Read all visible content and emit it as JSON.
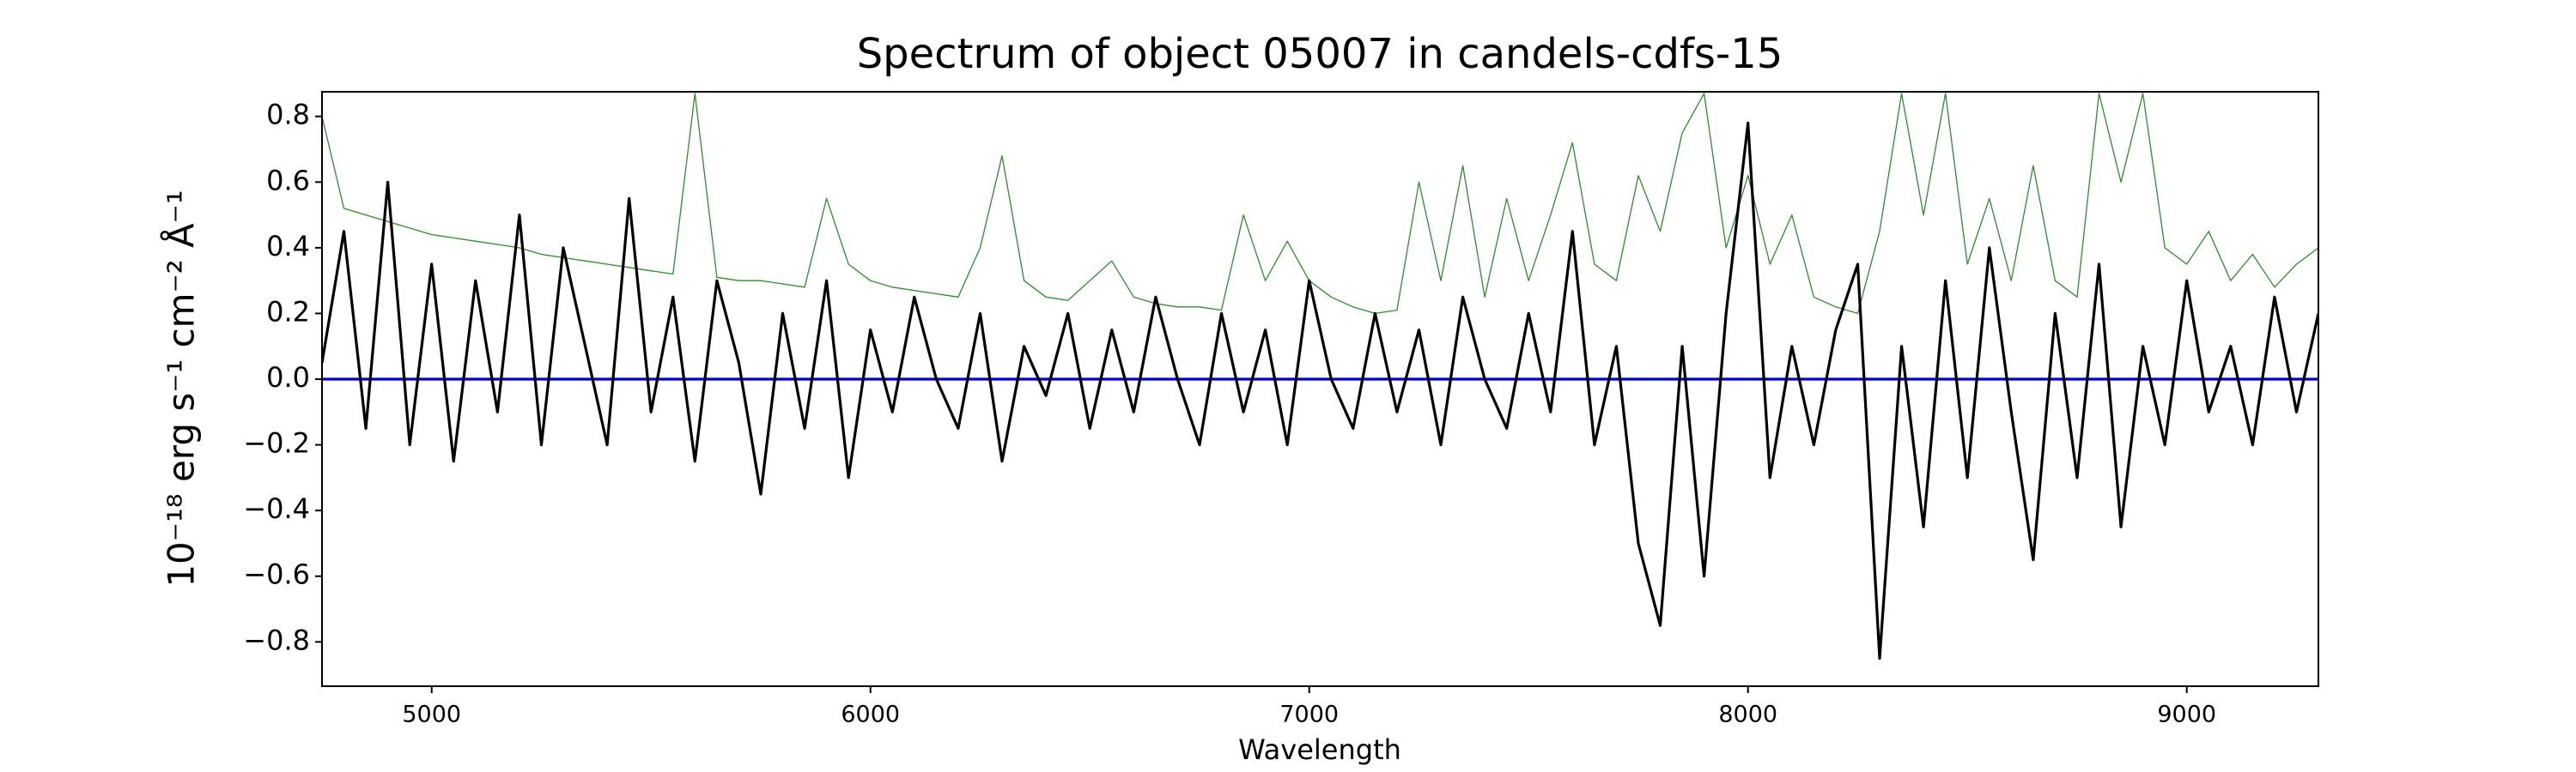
{
  "chart_data": {
    "type": "line",
    "title": "Spectrum of object 05007 in candels-cdfs-15",
    "xlabel": "Wavelength",
    "ylabel": "10⁻¹⁸ erg s⁻¹ cm⁻² Å⁻¹",
    "xlim": [
      4750,
      9300
    ],
    "ylim": [
      -0.935,
      0.875
    ],
    "xticks": [
      5000,
      6000,
      7000,
      8000,
      9000
    ],
    "yticks": [
      {
        "value": -0.8,
        "label": "−0.8"
      },
      {
        "value": -0.6,
        "label": "−0.6"
      },
      {
        "value": -0.4,
        "label": "−0.4"
      },
      {
        "value": -0.2,
        "label": "−0.2"
      },
      {
        "value": 0,
        "label": "0.0"
      },
      0.2,
      0.4,
      0.6,
      0.8
    ],
    "x": [
      4750,
      4800,
      4850,
      4900,
      4950,
      5000,
      5050,
      5100,
      5150,
      5200,
      5250,
      5300,
      5350,
      5400,
      5450,
      5500,
      5550,
      5600,
      5650,
      5700,
      5750,
      5800,
      5850,
      5900,
      5950,
      6000,
      6050,
      6100,
      6150,
      6200,
      6250,
      6300,
      6350,
      6400,
      6450,
      6500,
      6550,
      6600,
      6650,
      6700,
      6750,
      6800,
      6850,
      6900,
      6950,
      7000,
      7050,
      7100,
      7150,
      7200,
      7250,
      7300,
      7350,
      7400,
      7450,
      7500,
      7550,
      7600,
      7650,
      7700,
      7750,
      7800,
      7850,
      7900,
      7950,
      8000,
      8050,
      8100,
      8150,
      8200,
      8250,
      8300,
      8350,
      8400,
      8450,
      8500,
      8550,
      8600,
      8650,
      8700,
      8750,
      8800,
      8850,
      8900,
      8950,
      9000,
      9050,
      9100,
      9150,
      9200,
      9250,
      9300
    ],
    "series": [
      {
        "color": "#2e8b2e",
        "values": [
          0.8,
          0.52,
          0.5,
          0.48,
          0.46,
          0.44,
          0.43,
          0.42,
          0.41,
          0.4,
          0.38,
          0.37,
          0.36,
          0.35,
          0.34,
          0.33,
          0.32,
          0.87,
          0.31,
          0.3,
          0.3,
          0.29,
          0.28,
          0.55,
          0.35,
          0.3,
          0.28,
          0.27,
          0.26,
          0.25,
          0.4,
          0.68,
          0.3,
          0.25,
          0.24,
          0.3,
          0.36,
          0.25,
          0.23,
          0.22,
          0.22,
          0.21,
          0.5,
          0.3,
          0.42,
          0.3,
          0.25,
          0.22,
          0.2,
          0.21,
          0.6,
          0.3,
          0.65,
          0.25,
          0.55,
          0.3,
          0.5,
          0.72,
          0.35,
          0.3,
          0.62,
          0.45,
          0.75,
          0.87,
          0.4,
          0.62,
          0.35,
          0.5,
          0.25,
          0.22,
          0.2,
          0.45,
          0.87,
          0.5,
          0.87,
          0.35,
          0.55,
          0.3,
          0.65,
          0.3,
          0.25,
          0.87,
          0.6,
          0.87,
          0.4,
          0.35,
          0.45,
          0.3,
          0.38,
          0.28,
          0.35,
          0.4
        ]
      },
      {
        "color": "#000000",
        "values": [
          0.05,
          0.45,
          -0.15,
          0.6,
          -0.2,
          0.35,
          -0.25,
          0.3,
          -0.1,
          0.5,
          -0.2,
          0.4,
          0.1,
          -0.2,
          0.55,
          -0.1,
          0.25,
          -0.25,
          0.3,
          0.05,
          -0.35,
          0.2,
          -0.15,
          0.3,
          -0.3,
          0.15,
          -0.1,
          0.25,
          0.0,
          -0.15,
          0.2,
          -0.25,
          0.1,
          -0.05,
          0.2,
          -0.15,
          0.15,
          -0.1,
          0.25,
          0.0,
          -0.2,
          0.2,
          -0.1,
          0.15,
          -0.2,
          0.3,
          0.0,
          -0.15,
          0.2,
          -0.1,
          0.15,
          -0.2,
          0.25,
          0.0,
          -0.15,
          0.2,
          -0.1,
          0.45,
          -0.2,
          0.1,
          -0.5,
          -0.75,
          0.1,
          -0.6,
          0.2,
          0.78,
          -0.3,
          0.1,
          -0.2,
          0.15,
          0.35,
          -0.85,
          0.1,
          -0.45,
          0.3,
          -0.3,
          0.4,
          -0.1,
          -0.55,
          0.2,
          -0.3,
          0.35,
          -0.45,
          0.1,
          -0.2,
          0.3,
          -0.1,
          0.1,
          -0.2,
          0.25,
          -0.1,
          0.2
        ]
      },
      {
        "color": "#0000cc",
        "values": [
          0,
          0,
          0,
          0,
          0,
          0,
          0,
          0,
          0,
          0,
          0,
          0,
          0,
          0,
          0,
          0,
          0,
          0,
          0,
          0,
          0,
          0,
          0,
          0,
          0,
          0,
          0,
          0,
          0,
          0,
          0,
          0,
          0,
          0,
          0,
          0,
          0,
          0,
          0,
          0,
          0,
          0,
          0,
          0,
          0,
          0,
          0,
          0,
          0,
          0,
          0,
          0,
          0,
          0,
          0,
          0,
          0,
          0,
          0,
          0,
          0,
          0,
          0,
          0,
          0,
          0,
          0,
          0,
          0,
          0,
          0,
          0,
          0,
          0,
          0,
          0,
          0,
          0,
          0,
          0,
          0,
          0,
          0,
          0,
          0,
          0,
          0,
          0,
          0,
          0,
          0,
          0
        ]
      }
    ]
  }
}
